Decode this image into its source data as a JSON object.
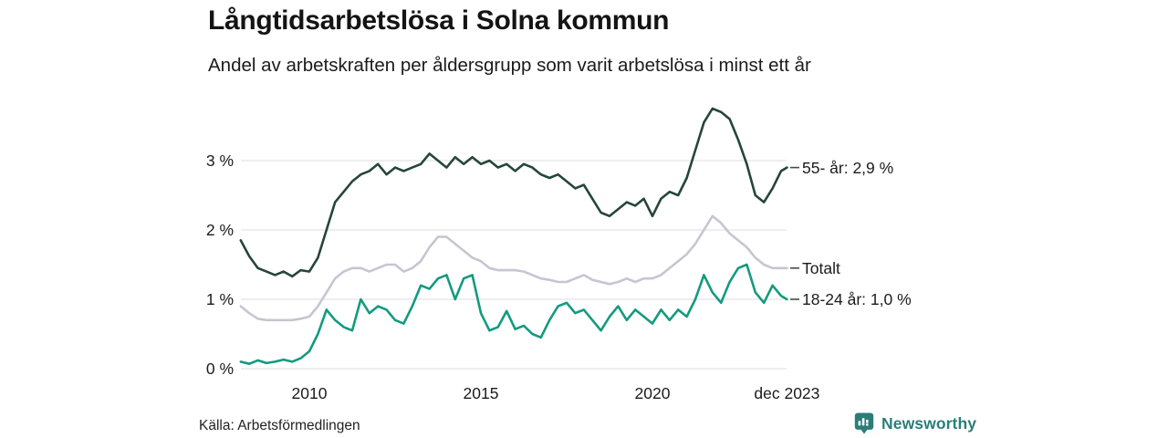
{
  "header": {
    "title": "Långtidsarbetslösa i Solna kommun",
    "subtitle": "Andel av arbetskraften per åldersgrupp som varit arbetslösa i minst ett år"
  },
  "footer": {
    "source": "Källa: Arbetsförmedlingen",
    "brand": "Newsworthy",
    "brand_icon": "newsworthy-chart-bubble-icon",
    "brand_color": "#2b7d78"
  },
  "colors": {
    "series_55": "#26453b",
    "series_totalt": "#c7c5d1",
    "series_1824": "#149a7f",
    "gridline": "#e3e3e6",
    "end_tick": "#4a4a4a",
    "text": "#1b1b1b"
  },
  "chart_data": {
    "type": "line",
    "title": "Långtidsarbetslösa i Solna kommun",
    "subtitle": "Andel av arbetskraften per åldersgrupp som varit arbetslösa i minst ett år",
    "grid": "horizontal",
    "legend_position": "end-of-line",
    "x_unit": "decimal-year (quarterly samples, last point dec 2023)",
    "ylim": [
      0,
      3.9
    ],
    "xlim": [
      2008.0,
      2023.92
    ],
    "yticks": [
      {
        "value": 0,
        "label": "0 %"
      },
      {
        "value": 1,
        "label": "1 %"
      },
      {
        "value": 2,
        "label": "2 %"
      },
      {
        "value": 3,
        "label": "3 %"
      }
    ],
    "xticks": [
      {
        "value": 2010,
        "label": "2010"
      },
      {
        "value": 2015,
        "label": "2015"
      },
      {
        "value": 2020,
        "label": "2020"
      },
      {
        "value": 2023.92,
        "label": "dec 2023"
      }
    ],
    "x": [
      2008.0,
      2008.25,
      2008.5,
      2008.75,
      2009.0,
      2009.25,
      2009.5,
      2009.75,
      2010.0,
      2010.25,
      2010.5,
      2010.75,
      2011.0,
      2011.25,
      2011.5,
      2011.75,
      2012.0,
      2012.25,
      2012.5,
      2012.75,
      2013.0,
      2013.25,
      2013.5,
      2013.75,
      2014.0,
      2014.25,
      2014.5,
      2014.75,
      2015.0,
      2015.25,
      2015.5,
      2015.75,
      2016.0,
      2016.25,
      2016.5,
      2016.75,
      2017.0,
      2017.25,
      2017.5,
      2017.75,
      2018.0,
      2018.25,
      2018.5,
      2018.75,
      2019.0,
      2019.25,
      2019.5,
      2019.75,
      2020.0,
      2020.25,
      2020.5,
      2020.75,
      2021.0,
      2021.25,
      2021.5,
      2021.75,
      2022.0,
      2022.25,
      2022.5,
      2022.75,
      2023.0,
      2023.25,
      2023.5,
      2023.75,
      2023.92
    ],
    "series": [
      {
        "name": "Totalt",
        "end_label": "Totalt",
        "color": "#c7c5d1",
        "values": [
          0.9,
          0.8,
          0.72,
          0.7,
          0.7,
          0.7,
          0.7,
          0.72,
          0.75,
          0.9,
          1.1,
          1.3,
          1.4,
          1.45,
          1.45,
          1.4,
          1.45,
          1.5,
          1.5,
          1.4,
          1.45,
          1.55,
          1.75,
          1.9,
          1.9,
          1.8,
          1.7,
          1.6,
          1.55,
          1.45,
          1.42,
          1.42,
          1.42,
          1.4,
          1.35,
          1.3,
          1.28,
          1.25,
          1.25,
          1.3,
          1.35,
          1.28,
          1.25,
          1.22,
          1.25,
          1.3,
          1.25,
          1.3,
          1.3,
          1.35,
          1.45,
          1.55,
          1.65,
          1.8,
          2.0,
          2.2,
          2.1,
          1.95,
          1.85,
          1.75,
          1.6,
          1.5,
          1.45,
          1.45,
          1.45
        ]
      },
      {
        "name": "18-24 år",
        "end_label": "18-24 år: 1,0 %",
        "color": "#149a7f",
        "values": [
          0.1,
          0.07,
          0.12,
          0.08,
          0.1,
          0.13,
          0.1,
          0.15,
          0.25,
          0.5,
          0.85,
          0.7,
          0.6,
          0.55,
          1.0,
          0.8,
          0.9,
          0.85,
          0.7,
          0.65,
          0.9,
          1.2,
          1.15,
          1.3,
          1.35,
          1.0,
          1.3,
          1.35,
          0.8,
          0.55,
          0.6,
          0.83,
          0.57,
          0.62,
          0.5,
          0.45,
          0.7,
          0.9,
          0.95,
          0.8,
          0.85,
          0.7,
          0.55,
          0.75,
          0.9,
          0.7,
          0.85,
          0.75,
          0.65,
          0.85,
          0.7,
          0.85,
          0.75,
          1.0,
          1.35,
          1.1,
          0.95,
          1.25,
          1.45,
          1.5,
          1.1,
          0.95,
          1.2,
          1.05,
          1.0
        ]
      },
      {
        "name": "55- år",
        "end_label": "55- år: 2,9 %",
        "color": "#26453b",
        "values": [
          1.85,
          1.62,
          1.45,
          1.4,
          1.35,
          1.4,
          1.33,
          1.42,
          1.4,
          1.6,
          2.0,
          2.4,
          2.55,
          2.7,
          2.8,
          2.85,
          2.95,
          2.8,
          2.9,
          2.85,
          2.9,
          2.95,
          3.1,
          3.0,
          2.9,
          3.05,
          2.95,
          3.05,
          2.95,
          3.0,
          2.9,
          2.95,
          2.85,
          2.95,
          2.9,
          2.8,
          2.75,
          2.8,
          2.7,
          2.6,
          2.65,
          2.45,
          2.25,
          2.2,
          2.3,
          2.4,
          2.35,
          2.45,
          2.2,
          2.45,
          2.55,
          2.5,
          2.75,
          3.15,
          3.55,
          3.75,
          3.7,
          3.6,
          3.3,
          2.95,
          2.5,
          2.4,
          2.6,
          2.85,
          2.9
        ]
      }
    ]
  }
}
